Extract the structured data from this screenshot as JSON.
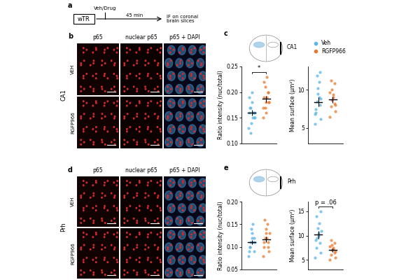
{
  "panel_labels": [
    "a",
    "b",
    "c",
    "d",
    "e"
  ],
  "timeline": {
    "start": "wTR",
    "treatment": "Veh/Drug",
    "delay": "45 min",
    "end": "IF on coronal\nbrain slices"
  },
  "image_panels": {
    "columns": [
      "p65",
      "nuclear p65",
      "p65 + DAPI"
    ],
    "rows": [
      "VEH",
      "RGFP966"
    ],
    "regions": [
      "CA1",
      "Prh"
    ]
  },
  "chart_data": [
    {
      "type": "scatter",
      "ylabel": "Ratio intensity (nuc/total)",
      "ylim": [
        0.1,
        0.25
      ],
      "yticks": [
        {
          "value": 0.1,
          "label": "0.10"
        },
        {
          "value": 0.15,
          "label": "0.15"
        },
        {
          "value": 0.2,
          "label": "0.20"
        },
        {
          "value": 0.25,
          "label": "0.25"
        }
      ],
      "tick_labels": "y",
      "legend": "upper left",
      "annotation": "*",
      "series": [
        {
          "name": "Veh",
          "color": "#5ab4e5",
          "values": [
            0.13,
            0.15,
            0.16,
            0.16,
            0.17,
            0.15,
            0.14,
            0.18,
            0.2,
            0.12,
            0.16,
            0.17,
            0.15,
            0.19,
            0.16
          ],
          "mean": 0.16,
          "error": 0.006
        },
        {
          "name": "RGFP966",
          "color": "#e8772e",
          "values": [
            0.17,
            0.18,
            0.19,
            0.2,
            0.21,
            0.23,
            0.16,
            0.18,
            0.19,
            0.17,
            0.2,
            0.22,
            0.18,
            0.15
          ],
          "mean": 0.187,
          "error": 0.006
        }
      ]
    },
    {
      "type": "scatter",
      "ylabel": "Mean surface (µm²)",
      "ylim": [
        3,
        13
      ],
      "yticks": [
        5,
        10
      ],
      "tick_labels": "y",
      "series": [
        {
          "name": "Veh",
          "color": "#5ab4e5",
          "values": [
            5.5,
            6.2,
            7.0,
            8.0,
            8.5,
            9.0,
            9.5,
            10.2,
            11.0,
            11.8,
            12.3,
            7.5,
            8.8,
            6.8
          ],
          "mean": 8.4,
          "error": 0.6
        },
        {
          "name": "RGFP966",
          "color": "#e8772e",
          "values": [
            6.5,
            7.2,
            7.8,
            8.2,
            8.6,
            9.0,
            9.4,
            10.0,
            10.8,
            11.2,
            8.0,
            9.6
          ],
          "mean": 8.7,
          "error": 0.4
        }
      ]
    },
    {
      "type": "scatter",
      "ylabel": "Ratio intensity (nuc/total)",
      "ylim": [
        0.05,
        0.2
      ],
      "yticks": [
        {
          "value": 0.05,
          "label": "0.05"
        },
        {
          "value": 0.1,
          "label": "0.10"
        },
        {
          "value": 0.15,
          "label": "0.15"
        },
        {
          "value": 0.2,
          "label": "0.20"
        }
      ],
      "tick_labels": "y",
      "series": [
        {
          "name": "Veh",
          "color": "#5ab4e5",
          "values": [
            0.08,
            0.09,
            0.1,
            0.11,
            0.11,
            0.12,
            0.13,
            0.14,
            0.15,
            0.1,
            0.12,
            0.09,
            0.11
          ],
          "mean": 0.11,
          "error": 0.005
        },
        {
          "name": "RGFP966",
          "color": "#e8772e",
          "values": [
            0.08,
            0.09,
            0.1,
            0.11,
            0.12,
            0.12,
            0.13,
            0.14,
            0.15,
            0.16,
            0.1,
            0.11,
            0.13
          ],
          "mean": 0.117,
          "error": 0.006
        }
      ]
    },
    {
      "type": "scatter",
      "ylabel": "Mean surface (µm²)",
      "ylim": [
        3,
        17
      ],
      "yticks": [
        5,
        10,
        15
      ],
      "tick_labels": "y",
      "annotation": "p = .06",
      "series": [
        {
          "name": "Veh",
          "color": "#5ab4e5",
          "values": [
            5.5,
            6.5,
            7.5,
            8.5,
            9.5,
            10.0,
            10.5,
            11.5,
            12.5,
            14.0,
            15.0,
            9.0,
            11.0
          ],
          "mean": 10.2,
          "error": 0.8
        },
        {
          "name": "RGFP966",
          "color": "#e8772e",
          "values": [
            5.0,
            5.5,
            6.0,
            6.5,
            7.0,
            7.2,
            7.5,
            8.0,
            8.5,
            9.0,
            6.8,
            7.8
          ],
          "mean": 7.0,
          "error": 0.35
        }
      ]
    }
  ]
}
